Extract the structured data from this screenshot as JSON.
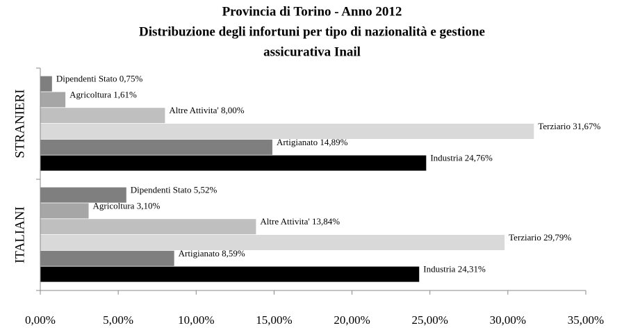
{
  "chart_data": {
    "type": "hbar",
    "title": [
      "Provincia di Torino - Anno 2012",
      "Distribuzione degli infortuni per tipo di nazionalità e gestione",
      "assicurativa Inail"
    ],
    "categories": [
      "STRANIERI",
      "ITALIANI"
    ],
    "series": [
      {
        "color": "#7f7f7f",
        "values": [
          0.75,
          5.52
        ],
        "value_labels": [
          "Dipendenti Stato 0,75%",
          "Dipendenti Stato 5,52%"
        ]
      },
      {
        "color": "#a6a6a6",
        "values": [
          1.61,
          3.1
        ],
        "value_labels": [
          "Agricoltura 1,61%",
          "Agricoltura 3,10%"
        ]
      },
      {
        "color": "#bfbfbf",
        "values": [
          8.0,
          13.84
        ],
        "value_labels": [
          "Altre Attivita' 8,00%",
          "Altre Attivita' 13,84%"
        ]
      },
      {
        "color": "#d9d9d9",
        "values": [
          31.67,
          29.79
        ],
        "value_labels": [
          "Terziario 31,67%",
          "Terziario 29,79%"
        ]
      },
      {
        "color": "#7f7f7f",
        "values": [
          14.89,
          8.59
        ],
        "value_labels": [
          "Artigianato 14,89%",
          "Artigianato 8,59%"
        ]
      },
      {
        "color": "#000000",
        "values": [
          24.76,
          24.31
        ],
        "value_labels": [
          "Industria 24,76%",
          "Industria 24,31%"
        ]
      }
    ],
    "xlim": [
      0,
      35
    ],
    "xticks": [
      {
        "value": 0,
        "label": "0,00%"
      },
      {
        "value": 5,
        "label": "5,00%"
      },
      {
        "value": 10,
        "label": "10,00%"
      },
      {
        "value": 15,
        "label": "15,00%"
      },
      {
        "value": 20,
        "label": "20,00%"
      },
      {
        "value": 25,
        "label": "25,00%"
      },
      {
        "value": 30,
        "label": "30,00%"
      },
      {
        "value": 35,
        "label": "35,00%"
      }
    ]
  }
}
